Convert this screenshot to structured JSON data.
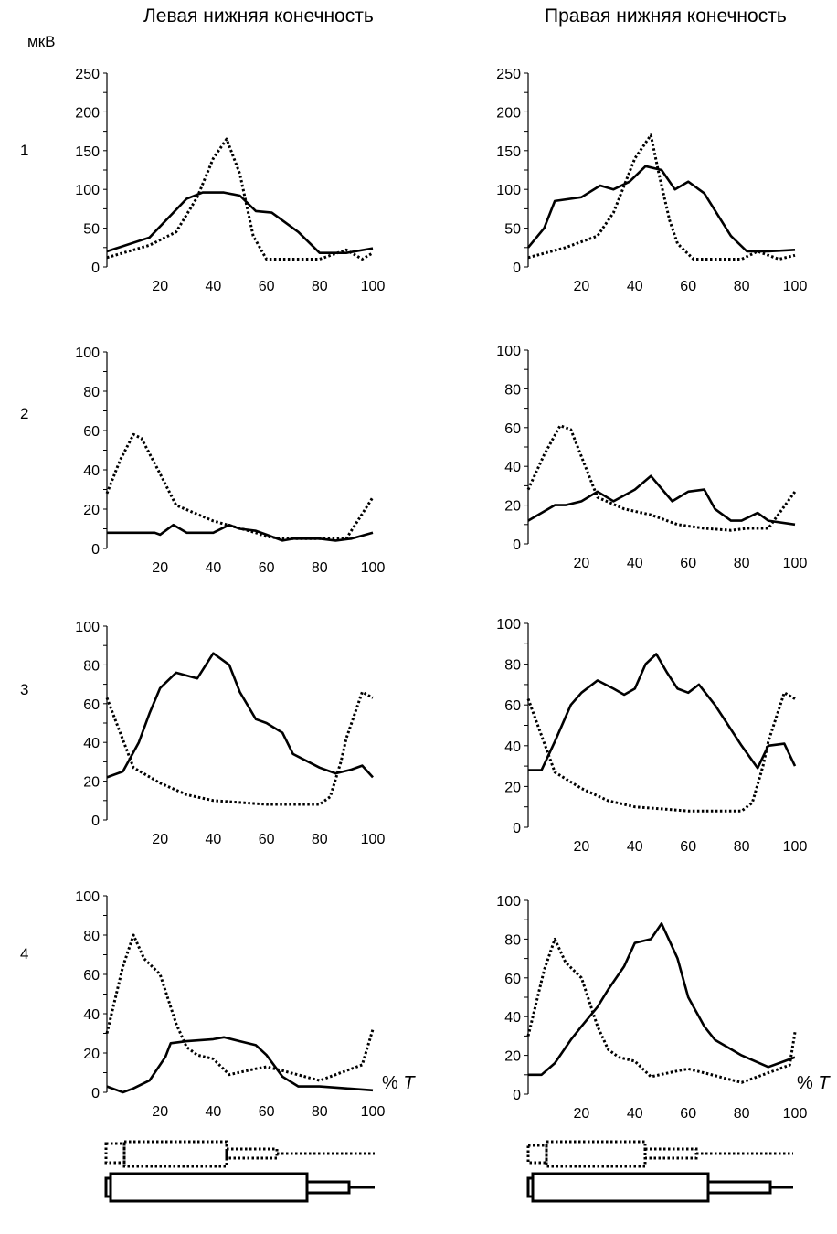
{
  "titles": {
    "left": "Левая нижняя конечность",
    "right": "Правая нижняя конечность"
  },
  "unit": "мкВ",
  "row_labels": [
    "1",
    "2",
    "3",
    "4"
  ],
  "x_unit_label": {
    "percent": "%",
    "symbol": "T"
  },
  "colors": {
    "line": "#000000"
  },
  "chart_data": [
    {
      "type": "line",
      "limb": "left",
      "row": "1",
      "xlim": [
        0,
        100
      ],
      "ylim": [
        0,
        250
      ],
      "xticks": [
        "20",
        "40",
        "60",
        "80",
        "100"
      ],
      "yticks": [
        "0",
        "50",
        "100",
        "150",
        "200",
        "250"
      ],
      "series": [
        {
          "style": "solid",
          "x": [
            0,
            16,
            30,
            36,
            44,
            50,
            56,
            62,
            72,
            80,
            90,
            100
          ],
          "y": [
            20,
            38,
            88,
            96,
            96,
            92,
            72,
            70,
            45,
            18,
            18,
            24
          ]
        },
        {
          "style": "dotted",
          "x": [
            0,
            16,
            26,
            34,
            40,
            45,
            50,
            55,
            60,
            70,
            80,
            90,
            96,
            100
          ],
          "y": [
            12,
            28,
            45,
            90,
            140,
            165,
            120,
            40,
            10,
            10,
            10,
            22,
            10,
            18
          ]
        }
      ]
    },
    {
      "type": "line",
      "limb": "right",
      "row": "1",
      "xlim": [
        0,
        100
      ],
      "ylim": [
        0,
        250
      ],
      "xticks": [
        "20",
        "40",
        "60",
        "80",
        "100"
      ],
      "yticks": [
        "0",
        "50",
        "100",
        "150",
        "200",
        "250"
      ],
      "series": [
        {
          "style": "solid",
          "x": [
            0,
            6,
            10,
            20,
            27,
            32,
            38,
            44,
            50,
            55,
            60,
            66,
            76,
            82,
            90,
            100
          ],
          "y": [
            25,
            50,
            85,
            90,
            105,
            100,
            110,
            130,
            125,
            100,
            110,
            95,
            40,
            20,
            20,
            22
          ]
        },
        {
          "style": "dotted",
          "x": [
            0,
            14,
            26,
            32,
            40,
            46,
            49,
            53,
            56,
            62,
            72,
            80,
            86,
            94,
            100
          ],
          "y": [
            12,
            25,
            40,
            70,
            140,
            170,
            120,
            60,
            30,
            10,
            10,
            10,
            20,
            10,
            15
          ]
        }
      ]
    },
    {
      "type": "line",
      "limb": "left",
      "row": "2",
      "xlim": [
        0,
        100
      ],
      "ylim": [
        0,
        100
      ],
      "xticks": [
        "20",
        "40",
        "60",
        "80",
        "100"
      ],
      "yticks": [
        "0",
        "20",
        "40",
        "60",
        "80",
        "100"
      ],
      "series": [
        {
          "style": "solid",
          "x": [
            0,
            10,
            18,
            20,
            25,
            30,
            34,
            40,
            46,
            50,
            56,
            60,
            66,
            70,
            75,
            80,
            86,
            92,
            100
          ],
          "y": [
            8,
            8,
            8,
            7,
            12,
            8,
            8,
            8,
            12,
            10,
            9,
            7,
            4,
            5,
            5,
            5,
            4,
            5,
            8
          ]
        },
        {
          "style": "dotted",
          "x": [
            0,
            5,
            10,
            13,
            20,
            26,
            40,
            56,
            60,
            66,
            76,
            86,
            90,
            100
          ],
          "y": [
            28,
            45,
            58,
            56,
            38,
            22,
            14,
            8,
            6,
            5,
            5,
            5,
            5,
            26
          ]
        }
      ]
    },
    {
      "type": "line",
      "limb": "right",
      "row": "2",
      "xlim": [
        0,
        100
      ],
      "ylim": [
        0,
        100
      ],
      "xticks": [
        "20",
        "40",
        "60",
        "80",
        "100"
      ],
      "yticks": [
        "0",
        "20",
        "40",
        "60",
        "80",
        "100"
      ],
      "series": [
        {
          "style": "solid",
          "x": [
            0,
            10,
            14,
            20,
            26,
            32,
            40,
            46,
            54,
            60,
            66,
            70,
            76,
            80,
            86,
            90,
            100
          ],
          "y": [
            12,
            20,
            20,
            22,
            27,
            22,
            28,
            35,
            22,
            27,
            28,
            18,
            12,
            12,
            16,
            12,
            10
          ]
        },
        {
          "style": "dotted",
          "x": [
            0,
            6,
            12,
            16,
            22,
            26,
            36,
            46,
            56,
            66,
            76,
            82,
            90,
            100
          ],
          "y": [
            28,
            46,
            61,
            59,
            38,
            24,
            18,
            15,
            10,
            8,
            7,
            8,
            8,
            27
          ]
        }
      ]
    },
    {
      "type": "line",
      "limb": "left",
      "row": "3",
      "xlim": [
        0,
        100
      ],
      "ylim": [
        0,
        100
      ],
      "xticks": [
        "20",
        "40",
        "60",
        "80",
        "100"
      ],
      "yticks": [
        "0",
        "20",
        "40",
        "60",
        "80",
        "100"
      ],
      "series": [
        {
          "style": "solid",
          "x": [
            0,
            6,
            12,
            16,
            20,
            26,
            34,
            40,
            46,
            50,
            56,
            60,
            66,
            70,
            80,
            86,
            92,
            96,
            100
          ],
          "y": [
            22,
            25,
            40,
            55,
            68,
            76,
            73,
            86,
            80,
            66,
            52,
            50,
            45,
            34,
            27,
            24,
            26,
            28,
            22
          ]
        },
        {
          "style": "dotted",
          "x": [
            0,
            10,
            20,
            30,
            40,
            50,
            60,
            70,
            80,
            84,
            88,
            90,
            96,
            100
          ],
          "y": [
            63,
            27,
            19,
            13,
            10,
            9,
            8,
            8,
            8,
            12,
            30,
            42,
            66,
            63
          ]
        }
      ]
    },
    {
      "type": "line",
      "limb": "right",
      "row": "3",
      "xlim": [
        0,
        100
      ],
      "ylim": [
        0,
        100
      ],
      "xticks": [
        "20",
        "40",
        "60",
        "80",
        "100"
      ],
      "yticks": [
        "0",
        "20",
        "40",
        "60",
        "80",
        "100"
      ],
      "series": [
        {
          "style": "solid",
          "x": [
            0,
            5,
            10,
            16,
            20,
            26,
            32,
            36,
            40,
            44,
            48,
            52,
            56,
            60,
            64,
            70,
            74,
            80,
            86,
            90,
            96,
            100
          ],
          "y": [
            28,
            28,
            42,
            60,
            66,
            72,
            68,
            65,
            68,
            80,
            85,
            76,
            68,
            66,
            70,
            60,
            52,
            40,
            29,
            40,
            41,
            30
          ]
        },
        {
          "style": "dotted",
          "x": [
            0,
            10,
            20,
            30,
            40,
            50,
            60,
            70,
            80,
            84,
            88,
            90,
            96,
            100
          ],
          "y": [
            63,
            27,
            19,
            13,
            10,
            9,
            8,
            8,
            8,
            12,
            30,
            42,
            66,
            63
          ]
        }
      ]
    },
    {
      "type": "line",
      "limb": "left",
      "row": "4",
      "xlim": [
        0,
        100
      ],
      "ylim": [
        0,
        100
      ],
      "xticks": [
        "20",
        "40",
        "60",
        "80",
        "100"
      ],
      "yticks": [
        "0",
        "20",
        "40",
        "60",
        "80",
        "100"
      ],
      "series": [
        {
          "style": "solid",
          "x": [
            0,
            6,
            10,
            16,
            22,
            24,
            30,
            40,
            44,
            50,
            56,
            60,
            66,
            72,
            80,
            90,
            100
          ],
          "y": [
            3,
            0,
            2,
            6,
            18,
            25,
            26,
            27,
            28,
            26,
            24,
            19,
            8,
            3,
            3,
            2,
            1
          ]
        },
        {
          "style": "dotted",
          "x": [
            0,
            6,
            10,
            14,
            20,
            26,
            30,
            34,
            40,
            46,
            56,
            60,
            66,
            80,
            96,
            100
          ],
          "y": [
            30,
            64,
            80,
            68,
            60,
            35,
            23,
            19,
            17,
            9,
            12,
            13,
            11,
            6,
            14,
            32
          ]
        }
      ]
    },
    {
      "type": "line",
      "limb": "right",
      "row": "4",
      "xlim": [
        0,
        100
      ],
      "ylim": [
        0,
        100
      ],
      "xticks": [
        "20",
        "40",
        "60",
        "80",
        "100"
      ],
      "yticks": [
        "0",
        "20",
        "40",
        "60",
        "80",
        "100"
      ],
      "series": [
        {
          "style": "solid",
          "x": [
            0,
            5,
            10,
            16,
            20,
            26,
            30,
            36,
            40,
            46,
            50,
            56,
            60,
            66,
            70,
            80,
            90,
            96,
            100
          ],
          "y": [
            10,
            10,
            16,
            28,
            35,
            45,
            54,
            66,
            78,
            80,
            88,
            70,
            50,
            35,
            28,
            20,
            14,
            17,
            19
          ]
        },
        {
          "style": "dotted",
          "x": [
            0,
            6,
            10,
            14,
            20,
            26,
            30,
            34,
            40,
            46,
            56,
            60,
            66,
            80,
            96,
            98,
            100
          ],
          "y": [
            30,
            64,
            80,
            68,
            60,
            35,
            23,
            19,
            17,
            9,
            12,
            13,
            11,
            6,
            14,
            15,
            32
          ]
        }
      ]
    }
  ]
}
